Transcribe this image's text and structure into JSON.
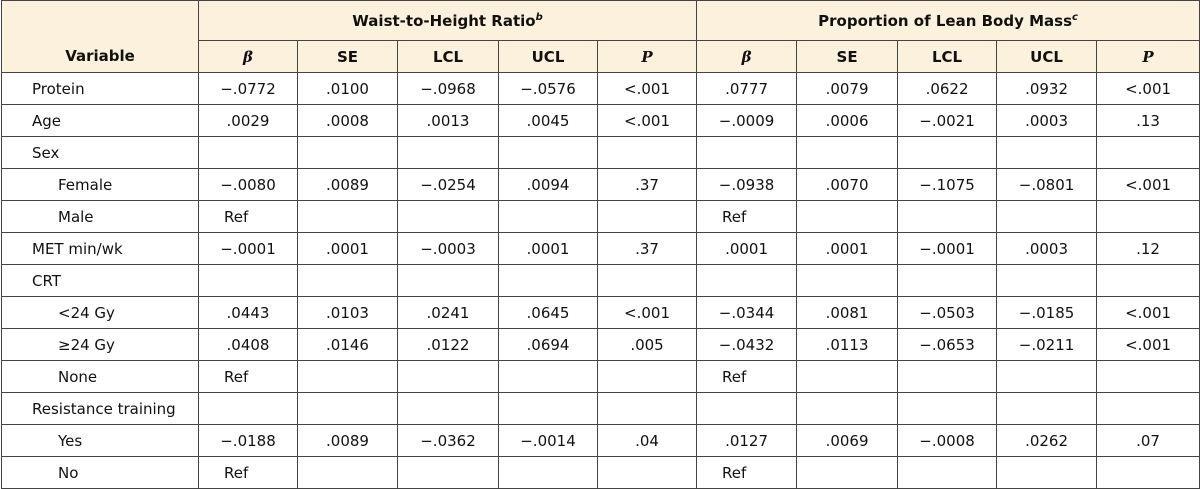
{
  "table": {
    "variable_header": "Variable",
    "groups": [
      {
        "title": "Waist-to-Height Ratio",
        "note": "b",
        "columns": [
          "β",
          "SE",
          "LCL",
          "UCL",
          "P"
        ]
      },
      {
        "title": "Proportion of Lean Body Mass",
        "note": "c",
        "columns": [
          "β",
          "SE",
          "LCL",
          "UCL",
          "P"
        ]
      }
    ],
    "rows": [
      {
        "label": "Protein",
        "values": [
          "−.0772",
          ".0100",
          "−.0968",
          "−.0576",
          "<.001",
          ".0777",
          ".0079",
          ".0622",
          ".0932",
          "<.001"
        ]
      },
      {
        "label": "Age",
        "values": [
          ".0029",
          ".0008",
          ".0013",
          ".0045",
          "<.001",
          "−.0009",
          ".0006",
          "−.0021",
          ".0003",
          ".13"
        ]
      },
      {
        "label": "Sex",
        "levels": [
          {
            "label": "Female",
            "values": [
              "−.0080",
              ".0089",
              "−.0254",
              ".0094",
              ".37",
              "−.0938",
              ".0070",
              "−.1075",
              "−.0801",
              "<.001"
            ]
          },
          {
            "label": "Male",
            "values": [
              "Ref",
              null,
              null,
              null,
              null,
              "Ref",
              null,
              null,
              null,
              null
            ]
          }
        ]
      },
      {
        "label": "MET min/wk",
        "values": [
          "−.0001",
          ".0001",
          "−.0003",
          ".0001",
          ".37",
          ".0001",
          ".0001",
          "−.0001",
          ".0003",
          ".12"
        ]
      },
      {
        "label": "CRT",
        "levels": [
          {
            "label": "<24 Gy",
            "values": [
              ".0443",
              ".0103",
              ".0241",
              ".0645",
              "<.001",
              "−.0344",
              ".0081",
              "−.0503",
              "−.0185",
              "<.001"
            ]
          },
          {
            "label": "≥24 Gy",
            "values": [
              ".0408",
              ".0146",
              ".0122",
              ".0694",
              ".005",
              "−.0432",
              ".0113",
              "−.0653",
              "−.0211",
              "<.001"
            ]
          },
          {
            "label": "None",
            "values": [
              "Ref",
              null,
              null,
              null,
              null,
              "Ref",
              null,
              null,
              null,
              null
            ]
          }
        ]
      },
      {
        "label": "Resistance training",
        "levels": [
          {
            "label": "Yes",
            "values": [
              "−.0188",
              ".0089",
              "−.0362",
              "−.0014",
              ".04",
              ".0127",
              ".0069",
              "−.0008",
              ".0262",
              ".07"
            ]
          },
          {
            "label": "No",
            "values": [
              "Ref",
              null,
              null,
              null,
              null,
              "Ref",
              null,
              null,
              null,
              null
            ]
          }
        ]
      }
    ]
  }
}
